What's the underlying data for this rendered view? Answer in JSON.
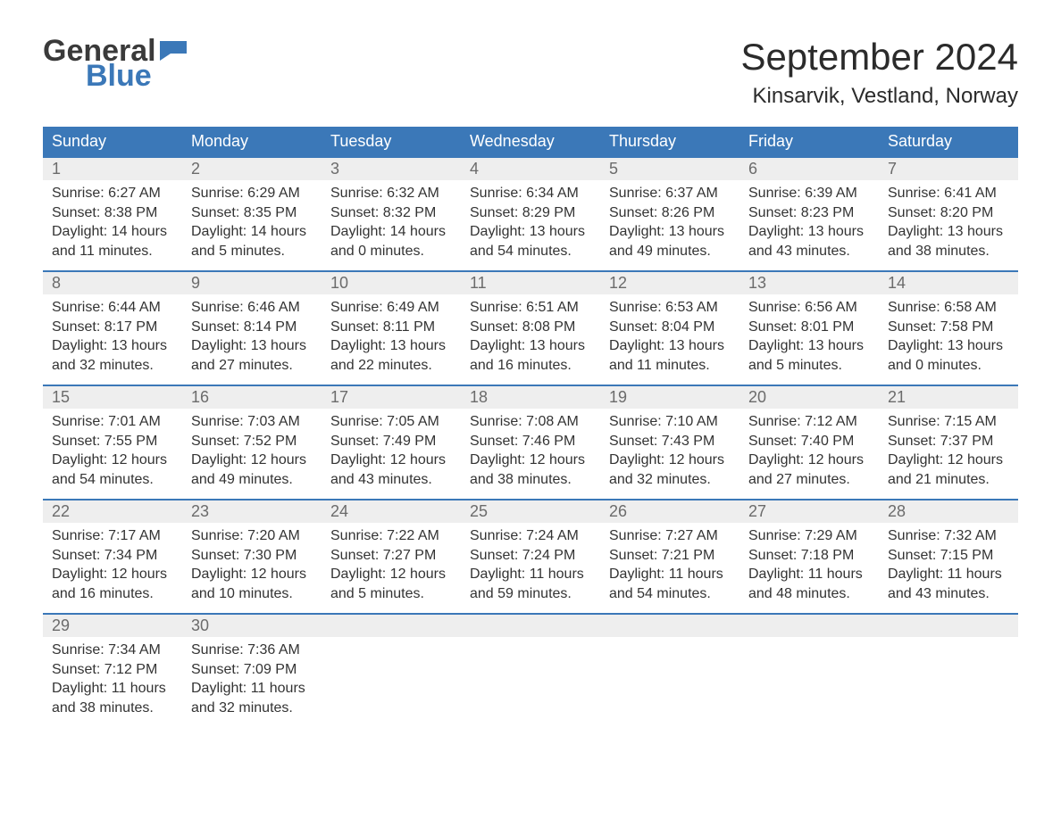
{
  "logo": {
    "word1": "General",
    "word2": "Blue",
    "flag_color": "#3b78b8",
    "word1_color": "#3a3a3a"
  },
  "title": "September 2024",
  "location": "Kinsarvik, Vestland, Norway",
  "colors": {
    "header_bg": "#3b78b8",
    "header_text": "#ffffff",
    "daynum_bg": "#eeeeee",
    "daynum_text": "#6b6b6b",
    "body_text": "#333333",
    "week_sep": "#3b78b8",
    "page_bg": "#ffffff"
  },
  "typography": {
    "title_fontsize": 42,
    "location_fontsize": 24,
    "header_fontsize": 18,
    "body_fontsize": 16
  },
  "layout": {
    "columns": 7,
    "rows": 5,
    "start_day_index": 0
  },
  "weekdays": [
    "Sunday",
    "Monday",
    "Tuesday",
    "Wednesday",
    "Thursday",
    "Friday",
    "Saturday"
  ],
  "days": [
    {
      "n": 1,
      "sunrise": "6:27 AM",
      "sunset": "8:38 PM",
      "daylight": "14 hours and 11 minutes."
    },
    {
      "n": 2,
      "sunrise": "6:29 AM",
      "sunset": "8:35 PM",
      "daylight": "14 hours and 5 minutes."
    },
    {
      "n": 3,
      "sunrise": "6:32 AM",
      "sunset": "8:32 PM",
      "daylight": "14 hours and 0 minutes."
    },
    {
      "n": 4,
      "sunrise": "6:34 AM",
      "sunset": "8:29 PM",
      "daylight": "13 hours and 54 minutes."
    },
    {
      "n": 5,
      "sunrise": "6:37 AM",
      "sunset": "8:26 PM",
      "daylight": "13 hours and 49 minutes."
    },
    {
      "n": 6,
      "sunrise": "6:39 AM",
      "sunset": "8:23 PM",
      "daylight": "13 hours and 43 minutes."
    },
    {
      "n": 7,
      "sunrise": "6:41 AM",
      "sunset": "8:20 PM",
      "daylight": "13 hours and 38 minutes."
    },
    {
      "n": 8,
      "sunrise": "6:44 AM",
      "sunset": "8:17 PM",
      "daylight": "13 hours and 32 minutes."
    },
    {
      "n": 9,
      "sunrise": "6:46 AM",
      "sunset": "8:14 PM",
      "daylight": "13 hours and 27 minutes."
    },
    {
      "n": 10,
      "sunrise": "6:49 AM",
      "sunset": "8:11 PM",
      "daylight": "13 hours and 22 minutes."
    },
    {
      "n": 11,
      "sunrise": "6:51 AM",
      "sunset": "8:08 PM",
      "daylight": "13 hours and 16 minutes."
    },
    {
      "n": 12,
      "sunrise": "6:53 AM",
      "sunset": "8:04 PM",
      "daylight": "13 hours and 11 minutes."
    },
    {
      "n": 13,
      "sunrise": "6:56 AM",
      "sunset": "8:01 PM",
      "daylight": "13 hours and 5 minutes."
    },
    {
      "n": 14,
      "sunrise": "6:58 AM",
      "sunset": "7:58 PM",
      "daylight": "13 hours and 0 minutes."
    },
    {
      "n": 15,
      "sunrise": "7:01 AM",
      "sunset": "7:55 PM",
      "daylight": "12 hours and 54 minutes."
    },
    {
      "n": 16,
      "sunrise": "7:03 AM",
      "sunset": "7:52 PM",
      "daylight": "12 hours and 49 minutes."
    },
    {
      "n": 17,
      "sunrise": "7:05 AM",
      "sunset": "7:49 PM",
      "daylight": "12 hours and 43 minutes."
    },
    {
      "n": 18,
      "sunrise": "7:08 AM",
      "sunset": "7:46 PM",
      "daylight": "12 hours and 38 minutes."
    },
    {
      "n": 19,
      "sunrise": "7:10 AM",
      "sunset": "7:43 PM",
      "daylight": "12 hours and 32 minutes."
    },
    {
      "n": 20,
      "sunrise": "7:12 AM",
      "sunset": "7:40 PM",
      "daylight": "12 hours and 27 minutes."
    },
    {
      "n": 21,
      "sunrise": "7:15 AM",
      "sunset": "7:37 PM",
      "daylight": "12 hours and 21 minutes."
    },
    {
      "n": 22,
      "sunrise": "7:17 AM",
      "sunset": "7:34 PM",
      "daylight": "12 hours and 16 minutes."
    },
    {
      "n": 23,
      "sunrise": "7:20 AM",
      "sunset": "7:30 PM",
      "daylight": "12 hours and 10 minutes."
    },
    {
      "n": 24,
      "sunrise": "7:22 AM",
      "sunset": "7:27 PM",
      "daylight": "12 hours and 5 minutes."
    },
    {
      "n": 25,
      "sunrise": "7:24 AM",
      "sunset": "7:24 PM",
      "daylight": "11 hours and 59 minutes."
    },
    {
      "n": 26,
      "sunrise": "7:27 AM",
      "sunset": "7:21 PM",
      "daylight": "11 hours and 54 minutes."
    },
    {
      "n": 27,
      "sunrise": "7:29 AM",
      "sunset": "7:18 PM",
      "daylight": "11 hours and 48 minutes."
    },
    {
      "n": 28,
      "sunrise": "7:32 AM",
      "sunset": "7:15 PM",
      "daylight": "11 hours and 43 minutes."
    },
    {
      "n": 29,
      "sunrise": "7:34 AM",
      "sunset": "7:12 PM",
      "daylight": "11 hours and 38 minutes."
    },
    {
      "n": 30,
      "sunrise": "7:36 AM",
      "sunset": "7:09 PM",
      "daylight": "11 hours and 32 minutes."
    }
  ],
  "labels": {
    "sunrise": "Sunrise:",
    "sunset": "Sunset:",
    "daylight": "Daylight:"
  }
}
